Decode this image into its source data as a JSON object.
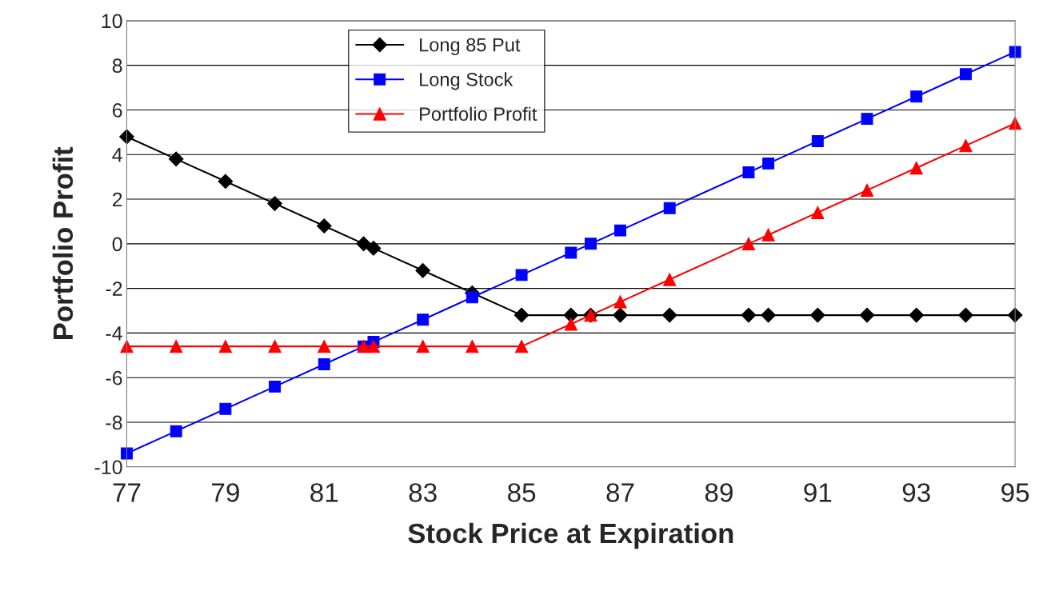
{
  "chart_data": {
    "type": "line",
    "xlabel": "Stock Price at Expiration",
    "ylabel": "Portfolio Profit",
    "x": [
      77,
      78,
      79,
      80,
      81,
      81.8,
      82,
      83,
      84,
      85,
      86,
      86.4,
      87,
      88,
      89.6,
      90,
      91,
      92,
      93,
      94,
      95
    ],
    "series": [
      {
        "name": "Long 85 Put",
        "color": "#000000",
        "marker": "diamond",
        "values": [
          4.8,
          3.8,
          2.8,
          1.8,
          0.8,
          0,
          -0.2,
          -1.2,
          -2.2,
          -3.2,
          -3.2,
          -3.2,
          -3.2,
          -3.2,
          -3.2,
          -3.2,
          -3.2,
          -3.2,
          -3.2,
          -3.2,
          -3.2
        ]
      },
      {
        "name": "Long Stock",
        "color": "#0000ff",
        "marker": "square",
        "values": [
          -9.4,
          -8.4,
          -7.4,
          -6.4,
          -5.4,
          -4.6,
          -4.4,
          -3.4,
          -2.4,
          -1.4,
          -0.4,
          0,
          0.6,
          1.6,
          3.2,
          3.6,
          4.6,
          5.6,
          6.6,
          7.6,
          8.6
        ]
      },
      {
        "name": "Portfolio Profit",
        "color": "#ff0000",
        "marker": "triangle",
        "values": [
          -4.6,
          -4.6,
          -4.6,
          -4.6,
          -4.6,
          -4.6,
          -4.6,
          -4.6,
          -4.6,
          -4.6,
          -3.6,
          -3.2,
          -2.6,
          -1.6,
          0,
          0.4,
          1.4,
          2.4,
          3.4,
          4.4,
          5.4
        ]
      }
    ],
    "xlim": [
      77,
      95
    ],
    "xticks": [
      77,
      79,
      81,
      83,
      85,
      87,
      89,
      91,
      93,
      95
    ],
    "ylim": [
      -10,
      10
    ],
    "yticks": [
      -10,
      -8,
      -6,
      -4,
      -2,
      0,
      2,
      4,
      6,
      8,
      10
    ],
    "grid": "y",
    "legend": "top center",
    "line_style": "solid"
  }
}
